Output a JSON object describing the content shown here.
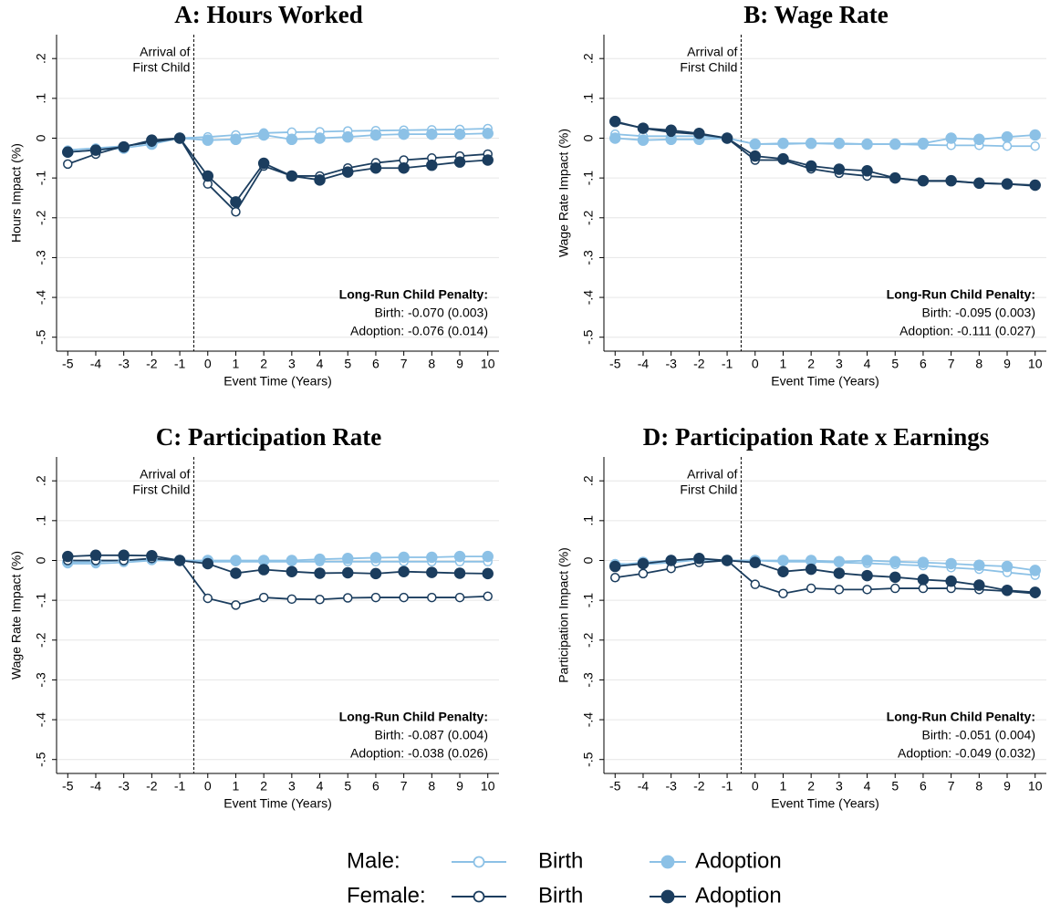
{
  "chart_data": [
    {
      "type": "line",
      "title": "A: Hours Worked",
      "ylabel": "Hours Impact (%)",
      "xlabel": "Event Time (Years)",
      "x": [
        -5,
        -4,
        -3,
        -2,
        -1,
        0,
        1,
        2,
        3,
        4,
        5,
        6,
        7,
        8,
        9,
        10
      ],
      "xlim": [
        -5.4,
        10.4
      ],
      "xticks": [
        -5,
        -4,
        -3,
        -2,
        -1,
        0,
        1,
        2,
        3,
        4,
        5,
        6,
        7,
        8,
        9,
        10
      ],
      "ylim": [
        -0.535,
        0.26
      ],
      "yticks": [
        {
          "value": 0.2,
          "label": ".2"
        },
        {
          "value": 0.1,
          "label": ".1"
        },
        0,
        {
          "value": -0.1,
          "label": "-.1"
        },
        {
          "value": -0.2,
          "label": "-.2"
        },
        {
          "value": -0.3,
          "label": "-.3"
        },
        {
          "value": -0.4,
          "label": "-.4"
        },
        {
          "value": -0.5,
          "label": "-.5"
        }
      ],
      "grid": true,
      "event_line": -0.5,
      "event_label": [
        "Arrival of",
        "First Child"
      ],
      "penalty": [
        "Long-Run Child Penalty:",
        "Birth: -0.070 (0.003)",
        "Adoption: -0.076 (0.014)"
      ],
      "series": [
        {
          "color": "#8cc1e6",
          "filled": false,
          "values": [
            -0.03,
            -0.025,
            -0.02,
            -0.01,
            0,
            0.003,
            0.008,
            0.013,
            0.015,
            0.016,
            0.018,
            0.019,
            0.02,
            0.021,
            0.022,
            0.024
          ]
        },
        {
          "color": "#8cc1e6",
          "filled": true,
          "values": [
            -0.035,
            -0.03,
            -0.025,
            -0.015,
            0,
            -0.005,
            -0.003,
            0.008,
            -0.003,
            0,
            0.003,
            0.008,
            0.01,
            0.01,
            0.01,
            0.012
          ]
        },
        {
          "color": "#1b3d5e",
          "filled": false,
          "values": [
            -0.065,
            -0.04,
            -0.02,
            -0.01,
            0,
            -0.115,
            -0.185,
            -0.07,
            -0.095,
            -0.095,
            -0.075,
            -0.062,
            -0.055,
            -0.05,
            -0.045,
            -0.04
          ]
        },
        {
          "color": "#1b3d5e",
          "filled": true,
          "values": [
            -0.035,
            -0.03,
            -0.022,
            -0.005,
            0,
            -0.095,
            -0.16,
            -0.063,
            -0.095,
            -0.105,
            -0.085,
            -0.075,
            -0.075,
            -0.068,
            -0.06,
            -0.055
          ]
        }
      ]
    },
    {
      "type": "line",
      "title": "B: Wage Rate",
      "ylabel": "Wage Rate Impact (%)",
      "xlabel": "Event Time (Years)",
      "x": [
        -5,
        -4,
        -3,
        -2,
        -1,
        0,
        1,
        2,
        3,
        4,
        5,
        6,
        7,
        8,
        9,
        10
      ],
      "xlim": [
        -5.4,
        10.4
      ],
      "xticks": [
        -5,
        -4,
        -3,
        -2,
        -1,
        0,
        1,
        2,
        3,
        4,
        5,
        6,
        7,
        8,
        9,
        10
      ],
      "ylim": [
        -0.535,
        0.26
      ],
      "yticks": [
        {
          "value": 0.2,
          "label": ".2"
        },
        {
          "value": 0.1,
          "label": ".1"
        },
        0,
        {
          "value": -0.1,
          "label": "-.1"
        },
        {
          "value": -0.2,
          "label": "-.2"
        },
        {
          "value": -0.3,
          "label": "-.3"
        },
        {
          "value": -0.4,
          "label": "-.4"
        },
        {
          "value": -0.5,
          "label": "-.5"
        }
      ],
      "grid": true,
      "event_line": -0.5,
      "event_label": [
        "Arrival of",
        "First Child"
      ],
      "penalty": [
        "Long-Run Child Penalty:",
        "Birth: -0.095 (0.003)",
        "Adoption: -0.111 (0.027)"
      ],
      "series": [
        {
          "color": "#8cc1e6",
          "filled": false,
          "values": [
            0.01,
            0.005,
            0.005,
            0.005,
            0,
            -0.015,
            -0.015,
            -0.013,
            -0.015,
            -0.015,
            -0.015,
            -0.017,
            -0.018,
            -0.018,
            -0.02,
            -0.02
          ]
        },
        {
          "color": "#8cc1e6",
          "filled": true,
          "values": [
            0,
            -0.005,
            -0.003,
            -0.003,
            0,
            -0.015,
            -0.013,
            -0.013,
            -0.013,
            -0.015,
            -0.015,
            -0.013,
            0,
            -0.003,
            0.003,
            0.008
          ]
        },
        {
          "color": "#1b3d5e",
          "filled": false,
          "values": [
            0.04,
            0.025,
            0.015,
            0.01,
            0,
            -0.055,
            -0.055,
            -0.077,
            -0.088,
            -0.095,
            -0.1,
            -0.108,
            -0.108,
            -0.113,
            -0.115,
            -0.12
          ]
        },
        {
          "color": "#1b3d5e",
          "filled": true,
          "values": [
            0.042,
            0.025,
            0.02,
            0.012,
            0,
            -0.045,
            -0.052,
            -0.07,
            -0.078,
            -0.082,
            -0.1,
            -0.107,
            -0.107,
            -0.113,
            -0.115,
            -0.118
          ]
        }
      ]
    },
    {
      "type": "line",
      "title": "C: Participation Rate",
      "ylabel": "Wage Rate Impact (%)",
      "xlabel": "Event Time (Years)",
      "x": [
        -5,
        -4,
        -3,
        -2,
        -1,
        0,
        1,
        2,
        3,
        4,
        5,
        6,
        7,
        8,
        9,
        10
      ],
      "xlim": [
        -5.4,
        10.4
      ],
      "xticks": [
        -5,
        -4,
        -3,
        -2,
        -1,
        0,
        1,
        2,
        3,
        4,
        5,
        6,
        7,
        8,
        9,
        10
      ],
      "ylim": [
        -0.535,
        0.26
      ],
      "yticks": [
        {
          "value": 0.2,
          "label": ".2"
        },
        {
          "value": 0.1,
          "label": ".1"
        },
        0,
        {
          "value": -0.1,
          "label": "-.1"
        },
        {
          "value": -0.2,
          "label": "-.2"
        },
        {
          "value": -0.3,
          "label": "-.3"
        },
        {
          "value": -0.4,
          "label": "-.4"
        },
        {
          "value": -0.5,
          "label": "-.5"
        }
      ],
      "grid": true,
      "event_line": -0.5,
      "event_label": [
        "Arrival of",
        "First Child"
      ],
      "penalty": [
        "Long-Run Child Penalty:",
        "Birth: -0.087 (0.004)",
        "Adoption: -0.038 (0.026)"
      ],
      "series": [
        {
          "color": "#8cc1e6",
          "filled": false,
          "values": [
            -0.008,
            -0.008,
            -0.005,
            0,
            0,
            -0.003,
            -0.003,
            -0.003,
            -0.003,
            -0.003,
            -0.003,
            -0.003,
            -0.003,
            -0.003,
            -0.003,
            -0.003
          ]
        },
        {
          "color": "#8cc1e6",
          "filled": true,
          "values": [
            -0.005,
            -0.003,
            0,
            0.003,
            0,
            0,
            0,
            0,
            0,
            0.003,
            0.005,
            0.007,
            0.008,
            0.008,
            0.01,
            0.01
          ]
        },
        {
          "color": "#1b3d5e",
          "filled": false,
          "values": [
            0,
            0,
            0,
            0.005,
            0,
            -0.095,
            -0.112,
            -0.093,
            -0.097,
            -0.098,
            -0.094,
            -0.093,
            -0.093,
            -0.093,
            -0.093,
            -0.09
          ]
        },
        {
          "color": "#1b3d5e",
          "filled": true,
          "values": [
            0.01,
            0.013,
            0.013,
            0.012,
            0,
            -0.008,
            -0.032,
            -0.023,
            -0.028,
            -0.032,
            -0.031,
            -0.033,
            -0.028,
            -0.03,
            -0.032,
            -0.033
          ]
        }
      ]
    },
    {
      "type": "line",
      "title": "D: Participation Rate x Earnings",
      "ylabel": "Participation Impact (%)",
      "xlabel": "Event Time (Years)",
      "x": [
        -5,
        -4,
        -3,
        -2,
        -1,
        0,
        1,
        2,
        3,
        4,
        5,
        6,
        7,
        8,
        9,
        10
      ],
      "xlim": [
        -5.4,
        10.4
      ],
      "xticks": [
        -5,
        -4,
        -3,
        -2,
        -1,
        0,
        1,
        2,
        3,
        4,
        5,
        6,
        7,
        8,
        9,
        10
      ],
      "ylim": [
        -0.535,
        0.26
      ],
      "yticks": [
        {
          "value": 0.2,
          "label": ".2"
        },
        {
          "value": 0.1,
          "label": ".1"
        },
        0,
        {
          "value": -0.1,
          "label": "-.1"
        },
        {
          "value": -0.2,
          "label": "-.2"
        },
        {
          "value": -0.3,
          "label": "-.3"
        },
        {
          "value": -0.4,
          "label": "-.4"
        },
        {
          "value": -0.5,
          "label": "-.5"
        }
      ],
      "grid": true,
      "event_line": -0.5,
      "event_label": [
        "Arrival of",
        "First Child"
      ],
      "penalty": [
        "Long-Run Child Penalty:",
        "Birth: -0.051 (0.004)",
        "Adoption: -0.049 (0.032)"
      ],
      "series": [
        {
          "color": "#8cc1e6",
          "filled": false,
          "values": [
            -0.008,
            -0.01,
            -0.005,
            0.002,
            0,
            0,
            -0.003,
            -0.003,
            -0.005,
            -0.007,
            -0.01,
            -0.013,
            -0.018,
            -0.022,
            -0.03,
            -0.037
          ]
        },
        {
          "color": "#8cc1e6",
          "filled": true,
          "values": [
            -0.012,
            -0.005,
            0,
            0.003,
            0,
            0,
            0,
            0,
            -0.003,
            0,
            -0.003,
            -0.005,
            -0.008,
            -0.012,
            -0.015,
            -0.025
          ]
        },
        {
          "color": "#1b3d5e",
          "filled": false,
          "values": [
            -0.043,
            -0.033,
            -0.02,
            -0.005,
            0,
            -0.06,
            -0.083,
            -0.07,
            -0.073,
            -0.073,
            -0.07,
            -0.07,
            -0.07,
            -0.073,
            -0.077,
            -0.083
          ]
        },
        {
          "color": "#1b3d5e",
          "filled": true,
          "values": [
            -0.015,
            -0.008,
            0,
            0.005,
            0,
            -0.005,
            -0.028,
            -0.022,
            -0.032,
            -0.038,
            -0.042,
            -0.048,
            -0.052,
            -0.062,
            -0.075,
            -0.08
          ]
        }
      ]
    }
  ],
  "legend": {
    "rows": [
      {
        "label": "Male:",
        "entries": [
          "Birth",
          "Adoption"
        ]
      },
      {
        "label": "Female:",
        "entries": [
          "Birth",
          "Adoption"
        ]
      }
    ]
  }
}
